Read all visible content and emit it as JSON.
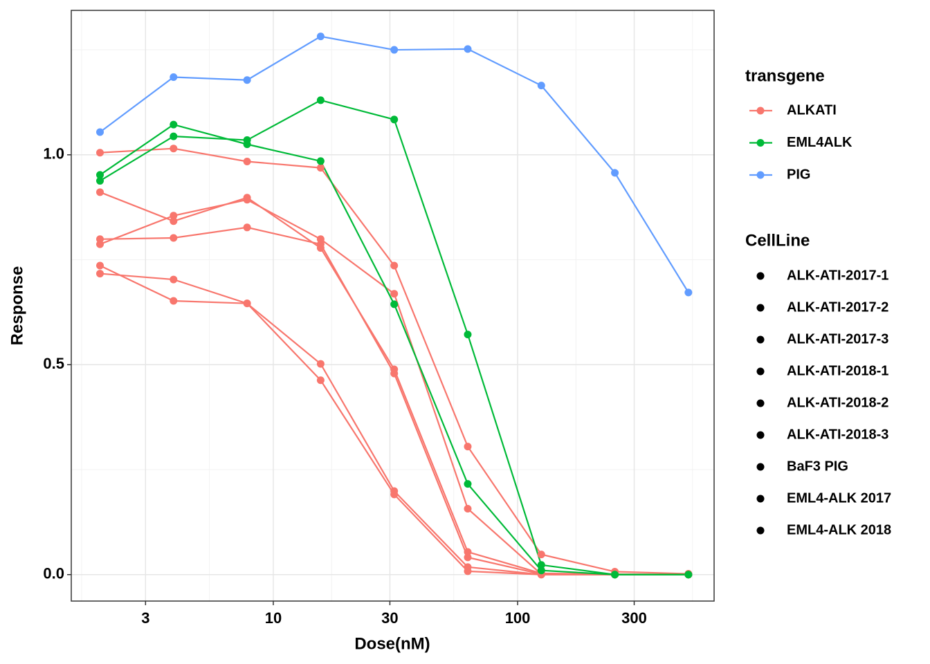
{
  "chart_data": {
    "type": "line",
    "x_label": "Dose(nM)",
    "y_label": "Response",
    "log_x": true,
    "grid": true,
    "x": [
      1.953125,
      3.90625,
      7.8125,
      15.625,
      31.25,
      62.5,
      125,
      250,
      500
    ],
    "xlim": [
      1.49,
      637
    ],
    "xticks": [
      3,
      10,
      30,
      100,
      300
    ],
    "ylim": [
      -0.063,
      1.344
    ],
    "yticks": [
      {
        "value": 0,
        "label": "0.0"
      },
      0.5,
      {
        "value": 1,
        "label": "1.0"
      }
    ],
    "series": [
      {
        "name": "ALK-ATI-2017-1",
        "color": "#f8766d",
        "values": [
          1.005,
          1.015,
          0.984,
          0.969,
          0.736,
          0.305,
          0.048,
          0.007,
          0.002
        ]
      },
      {
        "name": "ALK-ATI-2017-2",
        "color": "#f8766d",
        "values": [
          0.911,
          0.842,
          0.898,
          0.778,
          0.489,
          0.054,
          0.003,
          0.001,
          0.0
        ]
      },
      {
        "name": "ALK-ATI-2017-3",
        "color": "#f8766d",
        "values": [
          0.787,
          0.855,
          0.893,
          0.799,
          0.669,
          0.157,
          0.001,
          0.0,
          0.0
        ]
      },
      {
        "name": "ALK-ATI-2018-1",
        "color": "#f8766d",
        "values": [
          0.799,
          0.802,
          0.827,
          0.787,
          0.479,
          0.041,
          0.001,
          0.0,
          0.0
        ]
      },
      {
        "name": "ALK-ATI-2018-2",
        "color": "#f8766d",
        "values": [
          0.736,
          0.652,
          0.646,
          0.502,
          0.199,
          0.018,
          0.0,
          0.0,
          0.0
        ]
      },
      {
        "name": "ALK-ATI-2018-3",
        "color": "#f8766d",
        "values": [
          0.717,
          0.703,
          0.646,
          0.463,
          0.191,
          0.008,
          0.0,
          0.0,
          0.0
        ]
      },
      {
        "name": "BaF3 PIG",
        "color": "#619cff",
        "values": [
          1.054,
          1.185,
          1.178,
          1.282,
          1.25,
          1.252,
          1.165,
          0.957,
          0.672
        ]
      },
      {
        "name": "EML4-ALK 2017",
        "color": "#00ba38",
        "values": [
          0.952,
          1.072,
          1.025,
          0.985,
          0.644,
          0.216,
          0.01,
          0.0,
          0.0
        ]
      },
      {
        "name": "EML4-ALK 2018",
        "color": "#00ba38",
        "values": [
          0.938,
          1.044,
          1.035,
          1.13,
          1.084,
          0.572,
          0.023,
          0.0,
          0.0
        ]
      }
    ],
    "color_legend": {
      "title": "transgene",
      "entries": [
        {
          "name": "ALKATI",
          "color": "#f8766d"
        },
        {
          "name": "EML4ALK",
          "color": "#00ba38"
        },
        {
          "name": "PIG",
          "color": "#619cff"
        }
      ]
    },
    "series_legend_title": "CellLine"
  }
}
